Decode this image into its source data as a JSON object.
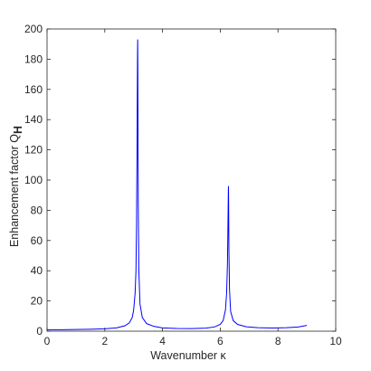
{
  "chart_data": {
    "type": "line",
    "xlabel": "Wavenumber κ",
    "ylabel_main": "Enhancement factor Q",
    "ylabel_subscript": "H",
    "xlim": [
      0,
      10
    ],
    "ylim": [
      0,
      200
    ],
    "xticks": [
      0,
      2,
      4,
      6,
      8,
      10
    ],
    "yticks": [
      0,
      20,
      40,
      60,
      80,
      100,
      120,
      140,
      160,
      180,
      200
    ],
    "grid": false,
    "box": true,
    "series": [
      {
        "color": "#0000ff",
        "x": [
          0,
          0.5,
          1.0,
          1.5,
          2.0,
          2.4,
          2.7,
          2.85,
          2.95,
          3.0,
          3.05,
          3.08,
          3.1,
          3.12,
          3.13,
          3.135,
          3.14,
          3.145,
          3.15,
          3.16,
          3.18,
          3.22,
          3.3,
          3.45,
          3.7,
          4.0,
          4.5,
          5.0,
          5.5,
          5.8,
          6.0,
          6.1,
          6.18,
          6.22,
          6.25,
          6.27,
          6.28,
          6.285,
          6.29,
          6.3,
          6.32,
          6.36,
          6.45,
          6.6,
          6.9,
          7.3,
          7.8,
          8.3,
          8.7,
          9.0
        ],
        "y": [
          1.0,
          1.0,
          1.1,
          1.3,
          1.6,
          2.2,
          3.6,
          5.5,
          9,
          14,
          25,
          40,
          70,
          130,
          170,
          185,
          193,
          175,
          140,
          85,
          40,
          18,
          9,
          5,
          3.2,
          2.2,
          1.8,
          1.7,
          2.0,
          2.8,
          4.5,
          7,
          14,
          25,
          45,
          75,
          92,
          96,
          85,
          55,
          28,
          13,
          7,
          4.5,
          2.9,
          2.3,
          2.1,
          2.3,
          2.8,
          3.8
        ]
      }
    ]
  }
}
